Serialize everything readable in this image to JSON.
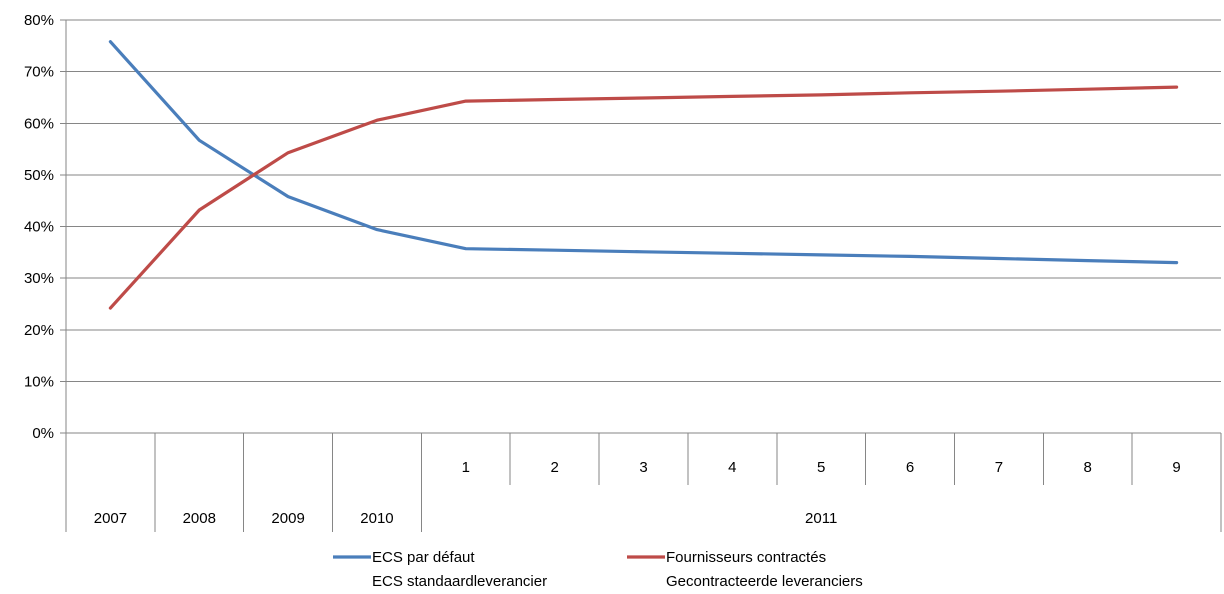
{
  "chart_data": {
    "type": "line",
    "ylim": [
      0,
      80
    ],
    "y_ticks": [
      "0%",
      "10%",
      "20%",
      "30%",
      "40%",
      "50%",
      "60%",
      "70%",
      "80%"
    ],
    "grid": true,
    "legend_position": "bottom",
    "categories": [
      {
        "label": "2007",
        "group": "2007"
      },
      {
        "label": "2008",
        "group": "2008"
      },
      {
        "label": "2009",
        "group": "2009"
      },
      {
        "label": "2010",
        "group": "2010"
      },
      {
        "label": "1",
        "group": "2011"
      },
      {
        "label": "2",
        "group": "2011"
      },
      {
        "label": "3",
        "group": "2011"
      },
      {
        "label": "4",
        "group": "2011"
      },
      {
        "label": "5",
        "group": "2011"
      },
      {
        "label": "6",
        "group": "2011"
      },
      {
        "label": "7",
        "group": "2011"
      },
      {
        "label": "8",
        "group": "2011"
      },
      {
        "label": "9",
        "group": "2011"
      }
    ],
    "groups": [
      "2007",
      "2008",
      "2009",
      "2010",
      "2011"
    ],
    "series": [
      {
        "name": [
          "ECS par défaut",
          "ECS standaardleverancier"
        ],
        "color": "#4a7ebb",
        "values": [
          75.8,
          56.7,
          45.8,
          39.4,
          35.7,
          35.4,
          35.1,
          34.8,
          34.5,
          34.2,
          33.8,
          33.4,
          33.0
        ]
      },
      {
        "name": [
          "Fournisseurs contractés",
          "Gecontracteerde leveranciers"
        ],
        "color": "#be4b48",
        "values": [
          24.2,
          43.2,
          54.3,
          60.6,
          64.3,
          64.6,
          64.9,
          65.2,
          65.5,
          65.9,
          66.2,
          66.6,
          67.0
        ]
      }
    ]
  }
}
